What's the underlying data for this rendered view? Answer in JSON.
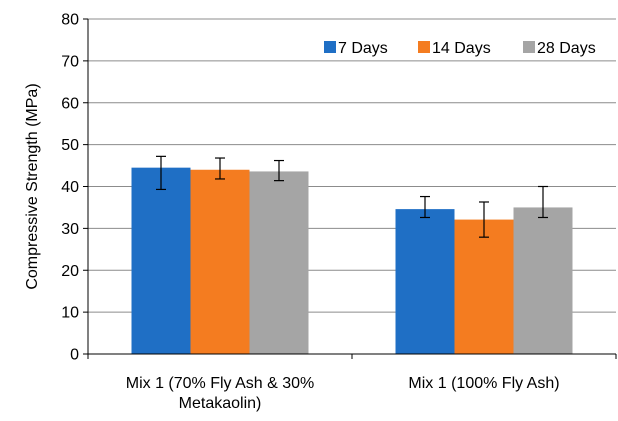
{
  "chart_data": {
    "type": "bar",
    "title": "",
    "xlabel": "",
    "ylabel": "Compressive Strength (MPa)",
    "ylim": [
      0,
      80
    ],
    "yticks": [
      0,
      10,
      20,
      30,
      40,
      50,
      60,
      70,
      80
    ],
    "grid": true,
    "legend_position": "top-right",
    "categories": [
      [
        "Mix 1 (70% Fly Ash & 30%",
        "Metakaolin)"
      ],
      [
        "Mix 1 (100% Fly Ash)"
      ]
    ],
    "series": [
      {
        "name": "7 Days",
        "color": "#1f6fc5",
        "values": [
          44.5,
          34.6
        ],
        "error_low": [
          39.3,
          32.6
        ],
        "error_high": [
          47.2,
          37.6
        ]
      },
      {
        "name": "14 Days",
        "color": "#f47c20",
        "values": [
          44.0,
          32.1
        ],
        "error_low": [
          41.8,
          27.9
        ],
        "error_high": [
          46.8,
          36.3
        ]
      },
      {
        "name": "28 Days",
        "color": "#a5a5a5",
        "values": [
          43.6,
          35.0
        ],
        "error_low": [
          41.4,
          32.6
        ],
        "error_high": [
          46.2,
          40.0
        ]
      }
    ]
  }
}
